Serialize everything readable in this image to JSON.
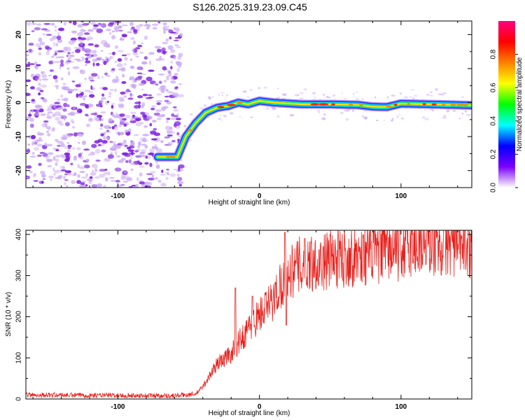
{
  "title": "S126.2025.319.23.09.C45",
  "colors": {
    "trace": "#e8201c",
    "speckle": "#7b1fe0",
    "speckle_light": "#c9a8f5",
    "axis": "#000000"
  },
  "chart_data": [
    {
      "type": "heatmap",
      "title": "S126.2025.319.23.09.C45",
      "xlabel": "Height of straight line (km)",
      "ylabel": "Frequency (Hz)",
      "xlim": [
        -165,
        150
      ],
      "ylim": [
        -25,
        24
      ],
      "xticks": [
        -100,
        0,
        100
      ],
      "xtick_labels": [
        "-100",
        "0",
        "100"
      ],
      "yticks": [
        -20,
        -10,
        0,
        10,
        20
      ],
      "ytick_labels": [
        "-20",
        "-10",
        "0",
        "10",
        "20"
      ],
      "colorbar": {
        "label": "Normalized spectral amplitude",
        "range": [
          0,
          1
        ],
        "ticks": [
          0.0,
          0.2,
          0.4,
          0.6,
          0.8
        ],
        "tick_labels": [
          "0.0",
          "0.2",
          "0.4",
          "0.6",
          "0.8"
        ],
        "colors": [
          "#ffffff",
          "#7b00ff",
          "#0000ff",
          "#00ffff",
          "#00ff00",
          "#ffff00",
          "#ff8000",
          "#ff0000",
          "#ff0080"
        ]
      },
      "noise_region_x": [
        -165,
        -60
      ],
      "ridge": {
        "x": [
          -72,
          -58,
          -52,
          -45,
          -38,
          -30,
          -22,
          -15,
          -8,
          0,
          10,
          30,
          50,
          70,
          80,
          90,
          100,
          120,
          150
        ],
        "y": [
          -16,
          -16,
          -10,
          -6,
          -3,
          -1.5,
          -1,
          0,
          -0.5,
          0.5,
          0,
          -0.5,
          -0.5,
          -0.7,
          -1.2,
          -1.3,
          -0.3,
          -0.5,
          -0.8
        ]
      }
    },
    {
      "type": "line",
      "xlabel": "Height of straight line (km)",
      "ylabel": "SNR (10 * v/v)",
      "xlim": [
        -165,
        150
      ],
      "ylim": [
        0,
        410
      ],
      "xticks": [
        -100,
        0,
        100
      ],
      "xtick_labels": [
        "-100",
        "0",
        "100"
      ],
      "yticks": [
        0,
        100,
        200,
        300,
        400
      ],
      "ytick_labels": [
        "0",
        "100",
        "200",
        "300",
        "400"
      ],
      "series": [
        {
          "name": "SNR",
          "trend_x": [
            -165,
            -60,
            -45,
            -40,
            -30,
            -20,
            -10,
            0,
            10,
            15,
            20,
            30,
            50,
            80,
            100,
            120,
            150
          ],
          "trend_y": [
            10,
            8,
            12,
            30,
            85,
            110,
            160,
            205,
            240,
            280,
            300,
            330,
            340,
            355,
            365,
            380,
            375
          ],
          "spikes": [
            [
              -17,
              270
            ],
            [
              -5,
              250
            ],
            [
              18,
              405
            ],
            [
              19,
              180
            ],
            [
              32,
              390
            ],
            [
              45,
              370
            ],
            [
              85,
              410
            ]
          ]
        }
      ]
    }
  ]
}
